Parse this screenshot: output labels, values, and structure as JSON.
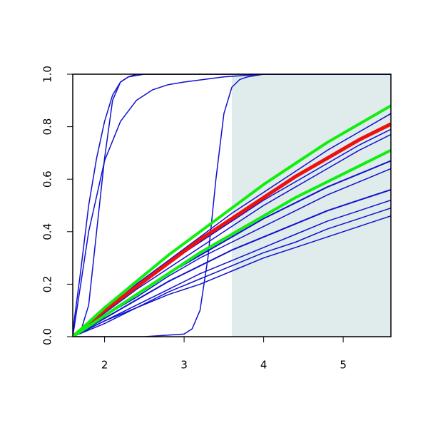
{
  "chart_data": {
    "type": "line",
    "xlim": [
      1.6,
      5.6
    ],
    "ylim": [
      0,
      1
    ],
    "xticks": [
      2,
      3,
      4,
      5
    ],
    "yticks": [
      {
        "value": 0,
        "label": "0.0"
      },
      {
        "value": 0.2,
        "label": "0.2"
      },
      {
        "value": 0.4,
        "label": "0.4"
      },
      {
        "value": 0.6,
        "label": "0.6"
      },
      {
        "value": 0.8,
        "label": "0.8"
      },
      {
        "value": 1,
        "label": "1.0"
      }
    ],
    "highlight_x": [
      3.6,
      5.6
    ],
    "highlight_color": "#e0ecec",
    "series": [
      {
        "color": "#1010d0",
        "linewidth": 1.5,
        "x": [
          1.6,
          2.0,
          2.4,
          2.8,
          3.2,
          3.6,
          4.0,
          4.4,
          4.8,
          5.2,
          5.6
        ],
        "values": [
          0,
          0.1,
          0.2,
          0.29,
          0.38,
          0.47,
          0.55,
          0.63,
          0.71,
          0.78,
          0.85
        ]
      },
      {
        "color": "#1010d0",
        "linewidth": 1.5,
        "x": [
          1.6,
          2.0,
          2.4,
          2.8,
          3.2,
          3.6,
          4.0,
          4.4,
          4.8,
          5.2,
          5.6
        ],
        "values": [
          0,
          0.1,
          0.19,
          0.28,
          0.36,
          0.44,
          0.52,
          0.59,
          0.66,
          0.73,
          0.79
        ]
      },
      {
        "color": "#1010d0",
        "linewidth": 1.5,
        "x": [
          1.6,
          2.0,
          2.4,
          2.8,
          3.2,
          3.6,
          4.0,
          4.4,
          4.8,
          5.2,
          5.6
        ],
        "values": [
          0,
          0.09,
          0.18,
          0.26,
          0.34,
          0.42,
          0.5,
          0.57,
          0.64,
          0.71,
          0.77
        ]
      },
      {
        "color": "#1010d0",
        "linewidth": 2,
        "x": [
          1.6,
          2.0,
          2.4,
          2.8,
          3.2,
          3.6,
          4.0,
          4.4,
          4.8,
          5.2,
          5.6
        ],
        "values": [
          0,
          0.08,
          0.16,
          0.24,
          0.31,
          0.38,
          0.45,
          0.51,
          0.57,
          0.62,
          0.67
        ]
      },
      {
        "color": "#1010d0",
        "linewidth": 1.5,
        "x": [
          1.6,
          2.0,
          2.4,
          2.8,
          3.2,
          3.6,
          4.0,
          4.4,
          4.8,
          5.2,
          5.6
        ],
        "values": [
          0,
          0.08,
          0.15,
          0.23,
          0.3,
          0.36,
          0.42,
          0.48,
          0.54,
          0.59,
          0.64
        ]
      },
      {
        "color": "#1010d0",
        "linewidth": 2,
        "x": [
          1.6,
          2.0,
          2.4,
          2.8,
          3.2,
          3.6,
          4.0,
          4.4,
          4.8,
          5.2,
          5.6
        ],
        "values": [
          0,
          0.07,
          0.14,
          0.21,
          0.27,
          0.33,
          0.38,
          0.43,
          0.48,
          0.52,
          0.56
        ]
      },
      {
        "color": "#1010d0",
        "linewidth": 1.5,
        "x": [
          1.6,
          2.0,
          2.4,
          2.8,
          3.2,
          3.6,
          4.0,
          4.4,
          4.8,
          5.2,
          5.6
        ],
        "values": [
          0,
          0.06,
          0.12,
          0.18,
          0.24,
          0.29,
          0.34,
          0.39,
          0.44,
          0.48,
          0.52
        ]
      },
      {
        "color": "#1010d0",
        "linewidth": 1.5,
        "x": [
          1.6,
          2.0,
          2.4,
          2.8,
          3.2,
          3.6,
          4.0,
          4.4,
          4.8,
          5.2,
          5.6
        ],
        "values": [
          0,
          0.06,
          0.11,
          0.17,
          0.22,
          0.27,
          0.32,
          0.36,
          0.41,
          0.45,
          0.49
        ]
      },
      {
        "color": "#1010d0",
        "linewidth": 1.5,
        "x": [
          1.6,
          2.0,
          2.4,
          2.8,
          3.2,
          3.6,
          4.0,
          4.4,
          4.8,
          5.2,
          5.6
        ],
        "values": [
          0,
          0.05,
          0.11,
          0.16,
          0.2,
          0.25,
          0.3,
          0.34,
          0.38,
          0.42,
          0.46
        ]
      },
      {
        "color": "#1010d0",
        "linewidth": 1.5,
        "x": [
          1.6,
          1.7,
          1.8,
          1.9,
          2.0,
          2.1,
          2.2,
          2.3,
          2.5,
          3.0,
          4.0,
          5.6
        ],
        "values": [
          0.02,
          0.25,
          0.5,
          0.68,
          0.82,
          0.92,
          0.97,
          0.99,
          1,
          1,
          1,
          1
        ]
      },
      {
        "color": "#1010d0",
        "linewidth": 1.5,
        "x": [
          1.6,
          1.8,
          2.0,
          2.2,
          2.4,
          2.6,
          2.8,
          3.0,
          3.5,
          4.0,
          5.6
        ],
        "values": [
          0,
          0.4,
          0.67,
          0.82,
          0.9,
          0.94,
          0.96,
          0.97,
          0.99,
          1,
          1
        ]
      },
      {
        "color": "#1010d0",
        "linewidth": 1.5,
        "x": [
          1.6,
          1.7,
          1.8,
          1.9,
          2.0,
          2.1,
          2.2,
          2.3,
          2.4,
          5.6
        ],
        "values": [
          0,
          0.02,
          0.12,
          0.4,
          0.68,
          0.9,
          0.97,
          0.99,
          1,
          1
        ]
      },
      {
        "color": "#1010d0",
        "linewidth": 1.5,
        "x": [
          1.6,
          2.5,
          3.0,
          3.1,
          3.2,
          3.3,
          3.4,
          3.5,
          3.6,
          3.7,
          3.8,
          4.0,
          5.6
        ],
        "values": [
          0,
          0,
          0.01,
          0.03,
          0.1,
          0.3,
          0.6,
          0.85,
          0.95,
          0.98,
          0.99,
          1,
          1
        ]
      },
      {
        "color": "#ee1010",
        "linewidth": 5,
        "x": [
          1.6,
          2.0,
          2.4,
          2.8,
          3.2,
          3.6,
          4.0,
          4.4,
          4.8,
          5.2,
          5.6
        ],
        "values": [
          0,
          0.1,
          0.19,
          0.28,
          0.37,
          0.45,
          0.53,
          0.61,
          0.68,
          0.75,
          0.81
        ]
      },
      {
        "color": "#10ee10",
        "linewidth": 4,
        "x": [
          1.6,
          2.0,
          2.4,
          2.8,
          3.2,
          3.6,
          4.0,
          4.4,
          4.8,
          5.2,
          5.6
        ],
        "values": [
          0,
          0.11,
          0.21,
          0.31,
          0.4,
          0.49,
          0.58,
          0.66,
          0.74,
          0.81,
          0.88
        ]
      },
      {
        "color": "#10ee10",
        "linewidth": 4,
        "x": [
          1.6,
          2.0,
          2.4,
          2.8,
          3.2,
          3.6,
          4.0,
          4.4,
          4.8,
          5.2,
          5.6
        ],
        "values": [
          0,
          0.08,
          0.16,
          0.24,
          0.32,
          0.39,
          0.46,
          0.53,
          0.59,
          0.65,
          0.71
        ]
      }
    ]
  }
}
